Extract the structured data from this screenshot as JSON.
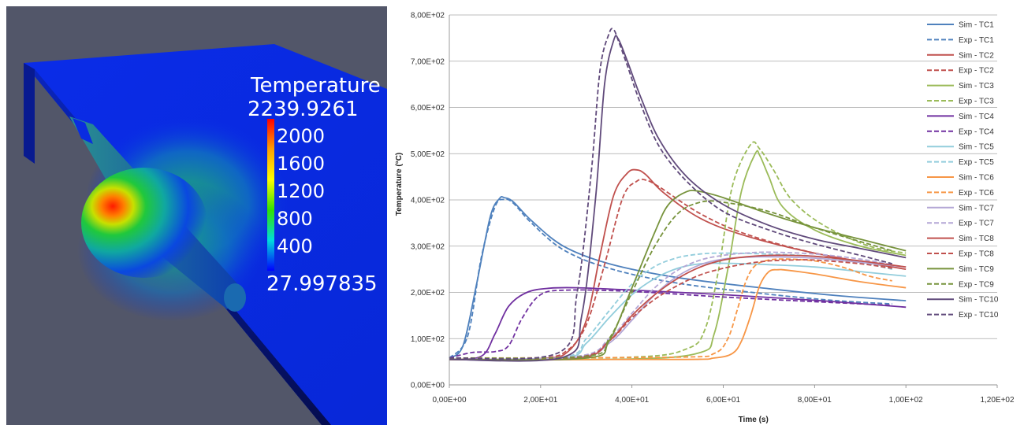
{
  "simulation": {
    "colorbar": {
      "title": "Temperature",
      "max_label": "2239.9261",
      "min_label": "27.997835",
      "ticks": [
        "2000",
        "1600",
        "1200",
        "800",
        "400"
      ],
      "colors": [
        "#ff0000",
        "#ffa000",
        "#ffff00",
        "#32e000",
        "#00dcdc",
        "#0000ff"
      ]
    }
  },
  "chart_data": {
    "type": "line",
    "title": "",
    "xlabel": "Time (s)",
    "ylabel": "Temperature (°C)",
    "xlim": [
      0,
      120
    ],
    "ylim": [
      0,
      800
    ],
    "xticks": [
      "0,00E+00",
      "2,00E+01",
      "4,00E+01",
      "6,00E+01",
      "8,00E+01",
      "1,00E+02",
      "1,20E+02"
    ],
    "yticks": [
      "0,00E+00",
      "1,00E+02",
      "2,00E+02",
      "3,00E+02",
      "4,00E+02",
      "5,00E+02",
      "6,00E+02",
      "7,00E+02",
      "8,00E+02"
    ],
    "grid": "horizontal",
    "legend_position": "right",
    "series": [
      {
        "name": "Sim - TC1",
        "color": "#4f81bd",
        "dash": false,
        "x": [
          0,
          3,
          6,
          9,
          11,
          12,
          14,
          18,
          25,
          35,
          50,
          70,
          85,
          100
        ],
        "y": [
          58,
          85,
          220,
          365,
          403,
          405,
          396,
          355,
          300,
          262,
          232,
          208,
          193,
          182
        ]
      },
      {
        "name": "Exp - TC1",
        "color": "#4f81bd",
        "dash": true,
        "x": [
          0,
          4,
          7,
          10,
          12,
          14,
          18,
          25,
          35,
          50,
          70,
          85,
          97
        ],
        "y": [
          58,
          105,
          275,
          385,
          401,
          393,
          350,
          292,
          252,
          220,
          196,
          182,
          175
        ]
      },
      {
        "name": "Sim - TC2",
        "color": "#c0504d",
        "dash": false,
        "x": [
          0,
          20,
          26,
          30,
          33,
          36,
          39,
          41,
          43,
          47,
          55,
          65,
          80,
          100
        ],
        "y": [
          55,
          57,
          72,
          140,
          280,
          410,
          458,
          465,
          455,
          415,
          360,
          322,
          285,
          250
        ]
      },
      {
        "name": "Exp - TC2",
        "color": "#c0504d",
        "dash": true,
        "x": [
          0,
          20,
          26,
          30,
          34,
          38,
          41,
          43,
          46,
          55,
          65,
          80,
          97
        ],
        "y": [
          55,
          58,
          76,
          130,
          260,
          405,
          440,
          443,
          428,
          370,
          326,
          285,
          255
        ]
      },
      {
        "name": "Sim - TC3",
        "color": "#9bbb59",
        "dash": false,
        "x": [
          0,
          40,
          55,
          58,
          61,
          64,
          67,
          68,
          70,
          73,
          80,
          90,
          100
        ],
        "y": [
          55,
          56,
          70,
          110,
          250,
          420,
          500,
          496,
          450,
          385,
          335,
          300,
          280
        ]
      },
      {
        "name": "Exp - TC3",
        "color": "#9bbb59",
        "dash": true,
        "x": [
          0,
          40,
          52,
          56,
          59,
          62,
          66,
          68,
          71,
          75,
          82,
          92,
          100
        ],
        "y": [
          58,
          60,
          78,
          120,
          250,
          430,
          520,
          510,
          465,
          400,
          345,
          300,
          285
        ]
      },
      {
        "name": "Sim - TC4",
        "color": "#7030a0",
        "dash": false,
        "x": [
          0,
          7,
          10,
          13,
          17,
          22,
          28,
          40,
          60,
          80,
          100
        ],
        "y": [
          55,
          62,
          110,
          170,
          200,
          209,
          210,
          205,
          195,
          183,
          168
        ]
      },
      {
        "name": "Exp - TC4",
        "color": "#7030a0",
        "dash": true,
        "x": [
          0,
          5,
          10,
          13,
          16,
          20,
          26,
          40,
          60,
          80,
          97
        ],
        "y": [
          58,
          70,
          72,
          85,
          145,
          195,
          205,
          202,
          190,
          180,
          172
        ]
      },
      {
        "name": "Sim - TC5",
        "color": "#92cddc",
        "dash": false,
        "x": [
          0,
          25,
          30,
          35,
          40,
          45,
          50,
          55,
          60,
          65,
          70,
          80,
          90,
          100
        ],
        "y": [
          55,
          58,
          90,
          145,
          195,
          230,
          252,
          262,
          263,
          262,
          260,
          255,
          245,
          235
        ]
      },
      {
        "name": "Exp - TC5",
        "color": "#92cddc",
        "dash": true,
        "x": [
          0,
          25,
          30,
          35,
          40,
          45,
          50,
          55,
          60,
          70,
          80,
          90,
          97
        ],
        "y": [
          58,
          60,
          100,
          160,
          218,
          256,
          275,
          283,
          285,
          283,
          278,
          265,
          250
        ]
      },
      {
        "name": "Sim - TC6",
        "color": "#f79646",
        "dash": false,
        "x": [
          0,
          50,
          58,
          62,
          64,
          66,
          68,
          70,
          72,
          74,
          80,
          90,
          100
        ],
        "y": [
          55,
          55,
          58,
          68,
          95,
          150,
          215,
          245,
          249,
          248,
          240,
          223,
          210
        ]
      },
      {
        "name": "Exp - TC6",
        "color": "#f79646",
        "dash": true,
        "x": [
          0,
          50,
          58,
          61,
          63,
          65,
          67,
          70,
          74,
          80,
          86,
          92,
          97
        ],
        "y": [
          58,
          60,
          68,
          100,
          160,
          225,
          258,
          270,
          272,
          268,
          255,
          235,
          225
        ]
      },
      {
        "name": "Sim - TC7",
        "color": "#b4a7d6",
        "dash": false,
        "x": [
          0,
          28,
          35,
          40,
          45,
          50,
          55,
          60,
          65,
          70,
          80,
          90,
          100
        ],
        "y": [
          55,
          60,
          90,
          140,
          195,
          235,
          260,
          272,
          276,
          277,
          274,
          265,
          255
        ]
      },
      {
        "name": "Exp - TC7",
        "color": "#b4a7d6",
        "dash": true,
        "x": [
          0,
          28,
          35,
          40,
          45,
          50,
          55,
          60,
          65,
          70,
          80,
          90,
          97
        ],
        "y": [
          58,
          62,
          100,
          155,
          210,
          248,
          270,
          280,
          285,
          287,
          283,
          272,
          260
        ]
      },
      {
        "name": "Sim - TC8",
        "color": "#c0504d",
        "dash": false,
        "x": [
          0,
          28,
          35,
          40,
          45,
          50,
          55,
          60,
          65,
          70,
          75,
          80,
          90,
          100
        ],
        "y": [
          55,
          57,
          95,
          150,
          195,
          230,
          255,
          270,
          277,
          280,
          280,
          278,
          268,
          255
        ]
      },
      {
        "name": "Exp - TC8",
        "color": "#c0504d",
        "dash": true,
        "x": [
          0,
          28,
          35,
          40,
          45,
          50,
          55,
          60,
          65,
          70,
          75,
          80,
          90,
          97
        ],
        "y": [
          58,
          60,
          95,
          145,
          185,
          215,
          238,
          252,
          262,
          268,
          270,
          270,
          262,
          252
        ]
      },
      {
        "name": "Sim - TC9",
        "color": "#77933c",
        "dash": false,
        "x": [
          0,
          30,
          35,
          40,
          45,
          48,
          52,
          55,
          60,
          70,
          80,
          90,
          100
        ],
        "y": [
          55,
          58,
          95,
          210,
          330,
          390,
          418,
          418,
          405,
          370,
          340,
          315,
          290
        ]
      },
      {
        "name": "Exp - TC9",
        "color": "#77933c",
        "dash": true,
        "x": [
          0,
          30,
          35,
          40,
          45,
          50,
          55,
          60,
          70,
          80,
          90,
          97
        ],
        "y": [
          58,
          62,
          100,
          200,
          300,
          370,
          395,
          395,
          375,
          340,
          310,
          290
        ]
      },
      {
        "name": "Sim - TC10",
        "color": "#604a7b",
        "dash": false,
        "x": [
          0,
          25,
          29,
          32,
          34,
          36,
          37,
          39,
          42,
          46,
          52,
          60,
          70,
          80,
          90,
          100
        ],
        "y": [
          55,
          60,
          150,
          400,
          650,
          745,
          748,
          700,
          620,
          530,
          450,
          390,
          345,
          315,
          295,
          275
        ]
      },
      {
        "name": "Exp - TC10",
        "color": "#604a7b",
        "dash": true,
        "x": [
          0,
          24,
          28,
          31,
          33,
          35,
          36,
          37,
          39,
          42,
          46,
          52,
          60,
          70,
          80,
          90,
          97
        ],
        "y": [
          58,
          70,
          200,
          450,
          680,
          760,
          768,
          745,
          690,
          605,
          515,
          440,
          375,
          335,
          305,
          280,
          262
        ]
      }
    ]
  }
}
